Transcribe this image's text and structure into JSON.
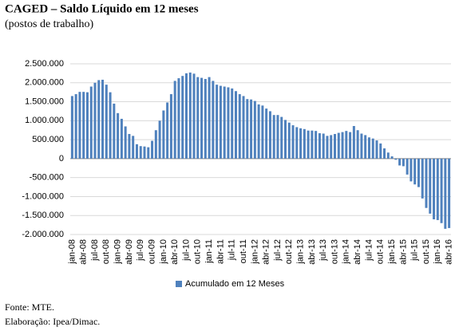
{
  "chart_data": {
    "type": "bar",
    "title": "CAGED – Saldo Líquido em 12 meses",
    "subtitle": "(postos de trabalho)",
    "categories": [
      "jan-08",
      null,
      null,
      "abr-08",
      null,
      null,
      "jul-08",
      null,
      null,
      "out-08",
      null,
      null,
      "jan-09",
      null,
      null,
      "abr-09",
      null,
      null,
      "jul-09",
      null,
      null,
      "out-09",
      null,
      null,
      "jan-10",
      null,
      null,
      "abr-10",
      null,
      null,
      "jul-10",
      null,
      null,
      "out-10",
      null,
      null,
      "jan-11",
      null,
      null,
      "abr-11",
      null,
      null,
      "jul-11",
      null,
      null,
      "out-11",
      null,
      null,
      "jan-12",
      null,
      null,
      "abr-12",
      null,
      null,
      "jul-12",
      null,
      null,
      "out-12",
      null,
      null,
      "jan-13",
      null,
      null,
      "abr-13",
      null,
      null,
      "jul-13",
      null,
      null,
      "out-13",
      null,
      null,
      "jan-14",
      null,
      null,
      "abr-14",
      null,
      null,
      "jul-14",
      null,
      null,
      "out-14",
      null,
      null,
      "jan-15",
      null,
      null,
      "abr-15",
      null,
      null,
      "jul-15",
      null,
      null,
      "out-15",
      null,
      null,
      "jan-16",
      null,
      null,
      "abr-16"
    ],
    "series": [
      {
        "name": "Acumulado em 12 Meses",
        "color": "#4f81bd",
        "values": [
          1650000,
          1700000,
          1760000,
          1760000,
          1750000,
          1900000,
          2000000,
          2070000,
          2080000,
          1950000,
          1750000,
          1450000,
          1200000,
          1050000,
          850000,
          650000,
          600000,
          380000,
          330000,
          320000,
          300000,
          470000,
          750000,
          1000000,
          1270000,
          1480000,
          1700000,
          2050000,
          2120000,
          2180000,
          2250000,
          2270000,
          2240000,
          2150000,
          2130000,
          2100000,
          2150000,
          2050000,
          1950000,
          1920000,
          1900000,
          1880000,
          1850000,
          1780000,
          1700000,
          1650000,
          1570000,
          1560000,
          1520000,
          1430000,
          1400000,
          1320000,
          1250000,
          1150000,
          1150000,
          1100000,
          1020000,
          950000,
          880000,
          830000,
          800000,
          780000,
          740000,
          740000,
          730000,
          670000,
          660000,
          600000,
          620000,
          650000,
          680000,
          700000,
          730000,
          700000,
          860000,
          750000,
          660000,
          620000,
          560000,
          530000,
          480000,
          400000,
          270000,
          160000,
          60000,
          -30000,
          -180000,
          -200000,
          -420000,
          -600000,
          -680000,
          -750000,
          -1050000,
          -1300000,
          -1450000,
          -1600000,
          -1620000,
          -1700000,
          -1850000,
          -1830000
        ]
      }
    ],
    "ylim": [
      -2000000,
      2500000
    ],
    "yticks": [
      {
        "value": -2000000,
        "label": "-2.000.000"
      },
      {
        "value": -1500000,
        "label": "-1.500.000"
      },
      {
        "value": -1000000,
        "label": "-1.000.000"
      },
      {
        "value": -500000,
        "label": "-500.000"
      },
      0,
      {
        "value": 500000,
        "label": "500.000"
      },
      {
        "value": 1000000,
        "label": "1.000.000"
      },
      {
        "value": 1500000,
        "label": "1.500.000"
      },
      {
        "value": 2000000,
        "label": "2.000.000"
      },
      {
        "value": 2500000,
        "label": "2.500.000"
      }
    ],
    "grid": true,
    "legend": "bottom",
    "notes": [
      "Fonte: MTE.",
      "Elaboração: Ipea/Dimac."
    ]
  }
}
